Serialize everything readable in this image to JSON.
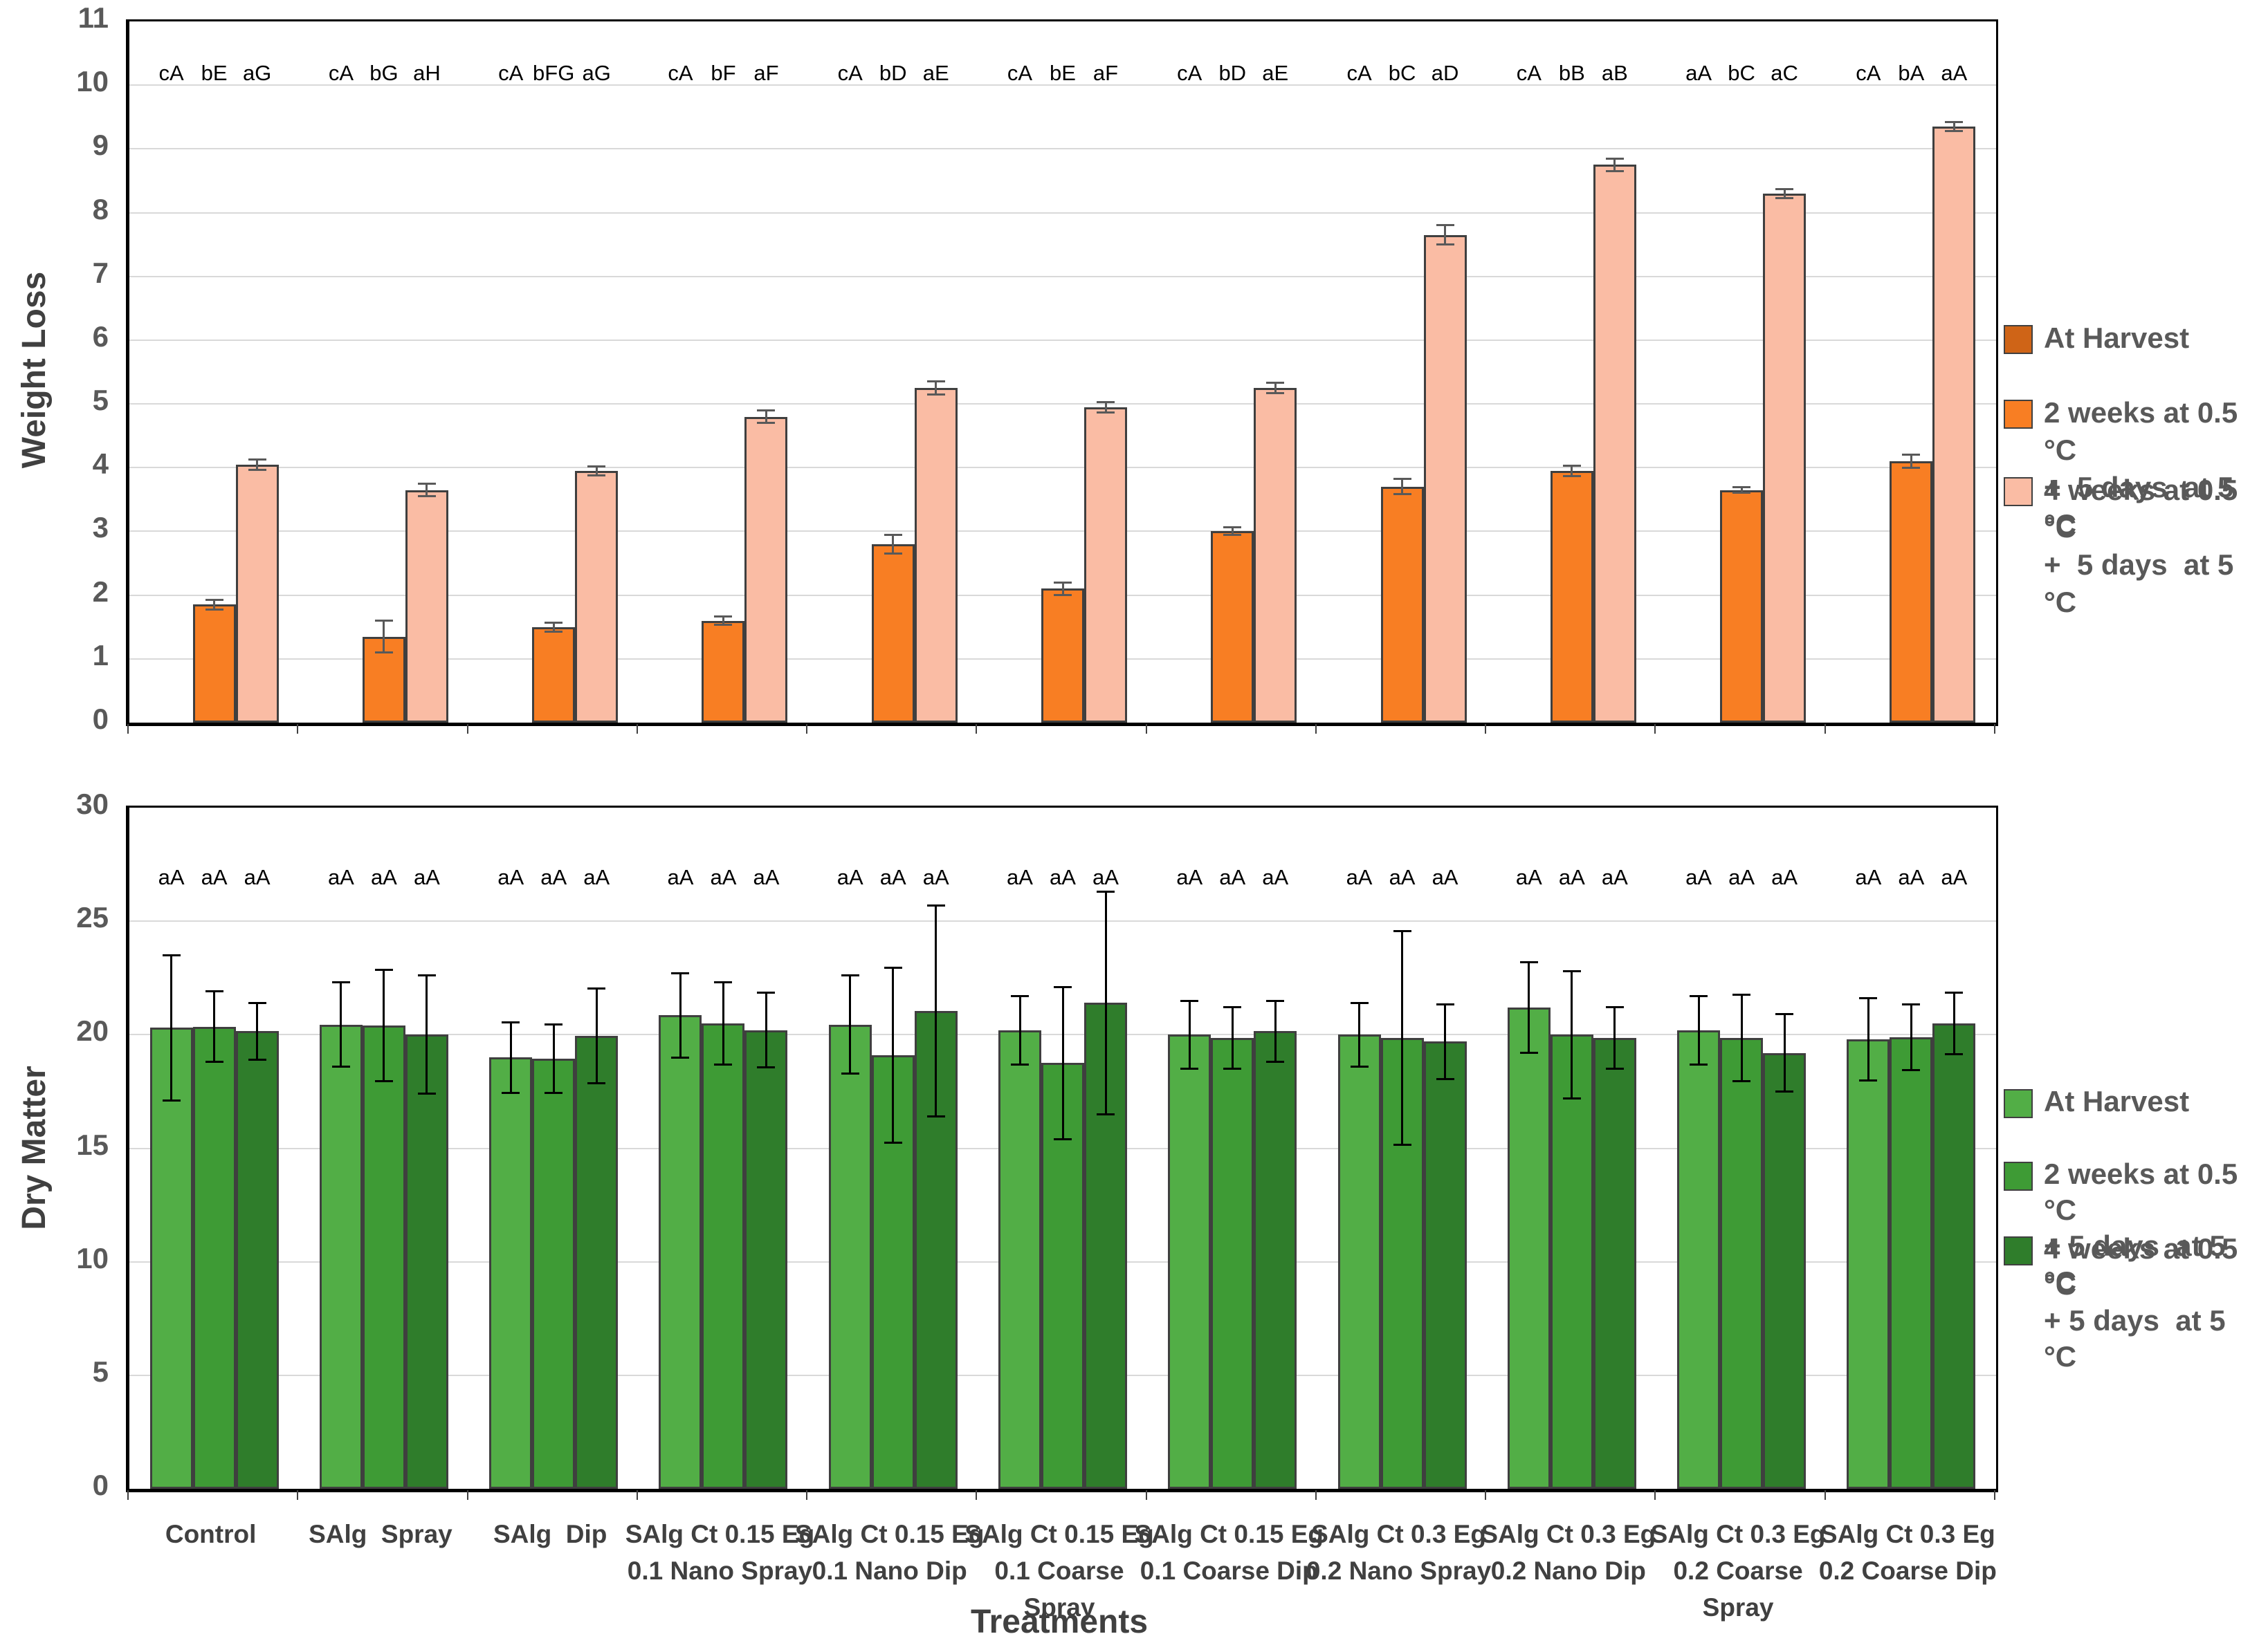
{
  "figure": {
    "x_axis_title": "Treatments",
    "top_chart_title": "Weight Loss",
    "bottom_chart_title": "Dry Matter"
  },
  "chart_data": [
    {
      "type": "bar",
      "ylabel": "Weight Loss",
      "xlabel": "Treatments",
      "ylim": [
        0,
        11
      ],
      "y_ticks": [
        0,
        1,
        2,
        3,
        4,
        5,
        6,
        7,
        8,
        9,
        10,
        11
      ],
      "grid": true,
      "legend_position": "right",
      "error_color": "#595959",
      "categories": [
        [
          "Control"
        ],
        [
          "SAlg  Spray"
        ],
        [
          "SAlg  Dip"
        ],
        [
          "SAlg Ct 0.15 Eg",
          "0.1 Nano Spray"
        ],
        [
          "SAlg Ct 0.15 Eg",
          "0.1 Nano Dip"
        ],
        [
          "SAlg Ct 0.15 Eg",
          "0.1 Coarse",
          "Spray"
        ],
        [
          "SAlg Ct 0.15 Eg",
          "0.1 Coarse Dip"
        ],
        [
          "SAlg Ct 0.3 Eg",
          "0.2 Nano Spray"
        ],
        [
          "SAlg Ct 0.3 Eg",
          "0.2 Nano Dip"
        ],
        [
          "SAlg Ct 0.3 Eg",
          "0.2 Coarse",
          "Spray"
        ],
        [
          "SAlg Ct 0.3 Eg",
          "0.2 Coarse Dip"
        ]
      ],
      "series": [
        {
          "name": "At Harvest",
          "legend_lines": [
            "At Harvest"
          ],
          "color": "#CF6417",
          "values": [
            0,
            0,
            0,
            0,
            0,
            0,
            0,
            0,
            0,
            0,
            0
          ],
          "errors": [
            0,
            0,
            0,
            0,
            0,
            0,
            0,
            0,
            0,
            0,
            0
          ]
        },
        {
          "name": "2 weeks at 0.5 °C + 5 days at 5 °C",
          "legend_lines": [
            "2 weeks at 0.5 °C",
            "+  5 days  at 5 °C"
          ],
          "color": "#F87E23",
          "values": [
            1.85,
            1.35,
            1.5,
            1.6,
            2.8,
            2.1,
            3.0,
            3.7,
            3.95,
            3.65,
            4.1
          ],
          "errors": [
            0.08,
            0.25,
            0.07,
            0.07,
            0.15,
            0.1,
            0.06,
            0.12,
            0.08,
            0.04,
            0.1
          ]
        },
        {
          "name": "4 weeks at 0.5 °C + 5 days at 5 °C",
          "legend_lines": [
            "4 weeks at 0.5 °C",
            "+  5 days  at 5 °C"
          ],
          "color": "#FABCA4",
          "values": [
            4.05,
            3.65,
            3.95,
            4.8,
            5.25,
            4.95,
            5.25,
            7.65,
            8.75,
            8.3,
            9.35
          ],
          "errors": [
            0.08,
            0.1,
            0.07,
            0.1,
            0.1,
            0.08,
            0.08,
            0.15,
            0.1,
            0.07,
            0.07
          ]
        }
      ],
      "letters": [
        [
          "cA",
          "bE",
          "aG"
        ],
        [
          "cA",
          "bG",
          "aH"
        ],
        [
          "cA",
          "bFG",
          "aG"
        ],
        [
          "cA",
          "bF",
          "aF"
        ],
        [
          "cA",
          "bD",
          "aE"
        ],
        [
          "cA",
          "bE",
          "aF"
        ],
        [
          "cA",
          "bD",
          "aE"
        ],
        [
          "cA",
          "bC",
          "aD"
        ],
        [
          "cA",
          "bB",
          "aB"
        ],
        [
          "aA",
          "bC",
          "aC"
        ],
        [
          "cA",
          "bA",
          "aA"
        ]
      ]
    },
    {
      "type": "bar",
      "ylabel": "Dry Matter",
      "xlabel": "Treatments",
      "ylim": [
        0,
        30
      ],
      "y_ticks": [
        0,
        5,
        10,
        15,
        20,
        25,
        30
      ],
      "grid": true,
      "legend_position": "right",
      "error_color": "#000000",
      "categories": [
        [
          "Control"
        ],
        [
          "SAlg  Spray"
        ],
        [
          "SAlg  Dip"
        ],
        [
          "SAlg Ct 0.15 Eg",
          "0.1 Nano Spray"
        ],
        [
          "SAlg Ct 0.15 Eg",
          "0.1 Nano Dip"
        ],
        [
          "SAlg Ct 0.15 Eg",
          "0.1 Coarse",
          "Spray"
        ],
        [
          "SAlg Ct 0.15 Eg",
          "0.1 Coarse Dip"
        ],
        [
          "SAlg Ct 0.3 Eg",
          "0.2 Nano Spray"
        ],
        [
          "SAlg Ct 0.3 Eg",
          "0.2 Nano Dip"
        ],
        [
          "SAlg Ct 0.3 Eg",
          "0.2 Coarse",
          "Spray"
        ],
        [
          "SAlg Ct 0.3 Eg",
          "0.2 Coarse Dip"
        ]
      ],
      "series": [
        {
          "name": "At Harvest",
          "legend_lines": [
            "At Harvest"
          ],
          "color": "#52AE46",
          "values": [
            20.3,
            20.45,
            19.0,
            20.85,
            20.45,
            20.2,
            20.0,
            20.0,
            21.2,
            20.2,
            19.8
          ],
          "errors": [
            3.2,
            1.85,
            1.55,
            1.85,
            2.15,
            1.5,
            1.5,
            1.4,
            2.0,
            1.5,
            1.8
          ]
        },
        {
          "name": "2 weeks at 0.5 °C + 5 days at 5 °C",
          "legend_lines": [
            "2 weeks at 0.5 °C",
            "+ 5 days  at 5 °C"
          ],
          "color": "#3E9B35",
          "values": [
            20.35,
            20.4,
            18.95,
            20.5,
            19.1,
            18.75,
            19.85,
            19.85,
            20.0,
            19.85,
            19.9
          ],
          "errors": [
            1.55,
            2.45,
            1.5,
            1.8,
            3.85,
            3.35,
            1.35,
            4.7,
            2.8,
            1.9,
            1.45
          ]
        },
        {
          "name": "4 weeks at 0.5 °C + 5 days at 5 °C",
          "legend_lines": [
            "4 weeks at 0.5 °C",
            "+ 5 days  at 5 °C"
          ],
          "color": "#2F7D2B",
          "values": [
            20.15,
            20.0,
            19.95,
            20.2,
            21.05,
            21.4,
            20.15,
            19.7,
            19.85,
            19.2,
            20.5
          ],
          "errors": [
            1.25,
            2.6,
            2.1,
            1.65,
            4.65,
            4.9,
            1.35,
            1.65,
            1.35,
            1.7,
            1.35
          ]
        }
      ],
      "letters": [
        [
          "aA",
          "aA",
          "aA"
        ],
        [
          "aA",
          "aA",
          "aA"
        ],
        [
          "aA",
          "aA",
          "aA"
        ],
        [
          "aA",
          "aA",
          "aA"
        ],
        [
          "aA",
          "aA",
          "aA"
        ],
        [
          "aA",
          "aA",
          "aA"
        ],
        [
          "aA",
          "aA",
          "aA"
        ],
        [
          "aA",
          "aA",
          "aA"
        ],
        [
          "aA",
          "aA",
          "aA"
        ],
        [
          "aA",
          "aA",
          "aA"
        ],
        [
          "aA",
          "aA",
          "aA"
        ]
      ]
    }
  ]
}
